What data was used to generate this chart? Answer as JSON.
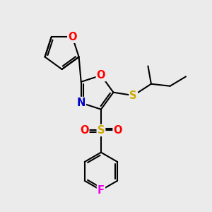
{
  "background_color": "#ebebeb",
  "atom_colors": {
    "O": "#ff0000",
    "N": "#0000cc",
    "S_sulfonyl": "#ccaa00",
    "S_thio": "#ccaa00",
    "F": "#ee00ee",
    "C": "#000000"
  },
  "bond_width": 1.5,
  "font_size_atoms": 10.5
}
